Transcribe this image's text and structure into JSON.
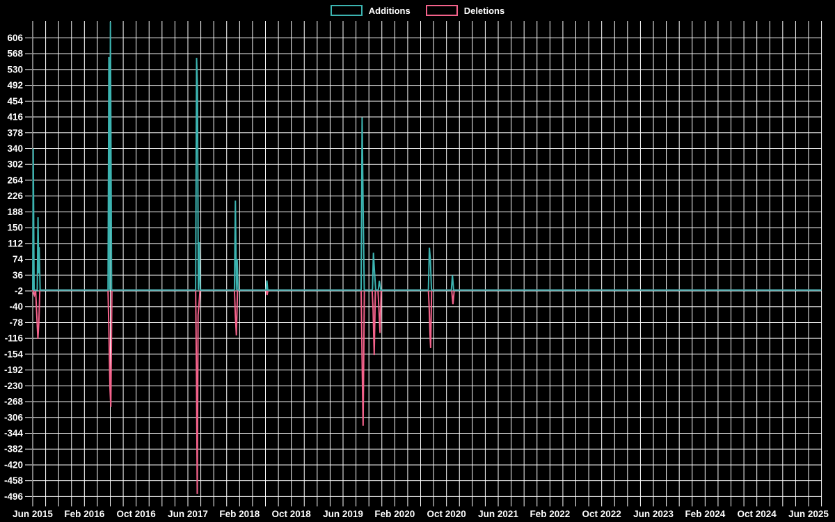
{
  "page": {
    "background": "#000000",
    "text_color": "#ffffff",
    "grid_color": "#ffffff"
  },
  "legend": {
    "items": [
      {
        "label": "Additions",
        "color": "#3cb4b1"
      },
      {
        "label": "Deletions",
        "color": "#f4628b"
      }
    ]
  },
  "chart_data": {
    "type": "line",
    "title": "",
    "xlabel": "",
    "ylabel": "",
    "legend_position": "top-center",
    "grid": true,
    "background": "#000000",
    "grid_color": "#ffffff",
    "x_unit": "months since Jun 2015",
    "x_range": [
      0,
      122
    ],
    "x_gridline_every_months": 2,
    "ylim": [
      -512,
      650
    ],
    "y_tick_step": 38,
    "y_ticks": [
      606,
      568,
      530,
      492,
      454,
      416,
      378,
      340,
      302,
      264,
      226,
      188,
      150,
      112,
      74,
      36,
      -2,
      -40,
      -78,
      -116,
      -154,
      -192,
      -230,
      -268,
      -306,
      -344,
      -382,
      -420,
      -458,
      -496
    ],
    "x_ticks": [
      {
        "label": "Jun 2015",
        "month": 0
      },
      {
        "label": "Feb 2016",
        "month": 8
      },
      {
        "label": "Oct 2016",
        "month": 16
      },
      {
        "label": "Jun 2017",
        "month": 24
      },
      {
        "label": "Feb 2018",
        "month": 32
      },
      {
        "label": "Oct 2018",
        "month": 40
      },
      {
        "label": "Jun 2019",
        "month": 48
      },
      {
        "label": "Feb 2020",
        "month": 56
      },
      {
        "label": "Oct 2020",
        "month": 64
      },
      {
        "label": "Jun 2021",
        "month": 72
      },
      {
        "label": "Feb 2022",
        "month": 80
      },
      {
        "label": "Oct 2022",
        "month": 88
      },
      {
        "label": "Jun 2023",
        "month": 96
      },
      {
        "label": "Feb 2024",
        "month": 104
      },
      {
        "label": "Oct 2024",
        "month": 112
      },
      {
        "label": "Jun 2025",
        "month": 120
      }
    ],
    "series": [
      {
        "name": "Additions",
        "color": "#3cb4b1",
        "points": [
          [
            0,
            0
          ],
          [
            0.08,
            340
          ],
          [
            0.22,
            0
          ],
          [
            0.7,
            0
          ],
          [
            0.82,
            175
          ],
          [
            0.93,
            40
          ],
          [
            1.0,
            103
          ],
          [
            1.15,
            0
          ],
          [
            11.65,
            0
          ],
          [
            11.78,
            560
          ],
          [
            11.9,
            0
          ],
          [
            12.02,
            645
          ],
          [
            12.2,
            0
          ],
          [
            25.2,
            0
          ],
          [
            25.35,
            558
          ],
          [
            25.48,
            485
          ],
          [
            25.62,
            0
          ],
          [
            25.75,
            115
          ],
          [
            25.9,
            0
          ],
          [
            31.2,
            0
          ],
          [
            31.35,
            215
          ],
          [
            31.5,
            0
          ],
          [
            31.62,
            75
          ],
          [
            31.78,
            0
          ],
          [
            36.1,
            0
          ],
          [
            36.22,
            23
          ],
          [
            36.35,
            0
          ],
          [
            50.8,
            0
          ],
          [
            50.95,
            415
          ],
          [
            51.1,
            207
          ],
          [
            51.28,
            0
          ],
          [
            52.55,
            0
          ],
          [
            52.7,
            90
          ],
          [
            52.85,
            48
          ],
          [
            53.05,
            0
          ],
          [
            53.45,
            0
          ],
          [
            53.62,
            22
          ],
          [
            53.85,
            0
          ],
          [
            61.2,
            0
          ],
          [
            61.35,
            102
          ],
          [
            61.5,
            75
          ],
          [
            61.68,
            0
          ],
          [
            64.75,
            0
          ],
          [
            64.92,
            36
          ],
          [
            65.1,
            0
          ],
          [
            122,
            0
          ]
        ]
      },
      {
        "name": "Deletions",
        "color": "#f4628b",
        "points": [
          [
            0,
            0
          ],
          [
            0.25,
            -12
          ],
          [
            0.45,
            0
          ],
          [
            0.8,
            -117
          ],
          [
            0.95,
            -78
          ],
          [
            1.1,
            0
          ],
          [
            11.65,
            0
          ],
          [
            11.8,
            -110
          ],
          [
            11.95,
            -234
          ],
          [
            12.08,
            -281
          ],
          [
            12.25,
            0
          ],
          [
            25.2,
            0
          ],
          [
            25.33,
            -198
          ],
          [
            25.45,
            -490
          ],
          [
            25.58,
            -60
          ],
          [
            25.72,
            -35
          ],
          [
            25.88,
            0
          ],
          [
            31.2,
            0
          ],
          [
            31.35,
            -63
          ],
          [
            31.5,
            -109
          ],
          [
            31.68,
            0
          ],
          [
            36.1,
            0
          ],
          [
            36.25,
            -12
          ],
          [
            36.4,
            0
          ],
          [
            50.8,
            0
          ],
          [
            50.95,
            -170
          ],
          [
            51.1,
            -326
          ],
          [
            51.3,
            0
          ],
          [
            52.5,
            0
          ],
          [
            52.65,
            -47
          ],
          [
            52.82,
            -156
          ],
          [
            53.0,
            0
          ],
          [
            53.4,
            0
          ],
          [
            53.55,
            -45
          ],
          [
            53.72,
            -103
          ],
          [
            53.9,
            0
          ],
          [
            61.2,
            0
          ],
          [
            61.33,
            -45
          ],
          [
            61.45,
            -106
          ],
          [
            61.55,
            -139
          ],
          [
            61.7,
            0
          ],
          [
            64.8,
            0
          ],
          [
            65.0,
            -34
          ],
          [
            65.2,
            0
          ],
          [
            122,
            0
          ]
        ]
      }
    ]
  }
}
